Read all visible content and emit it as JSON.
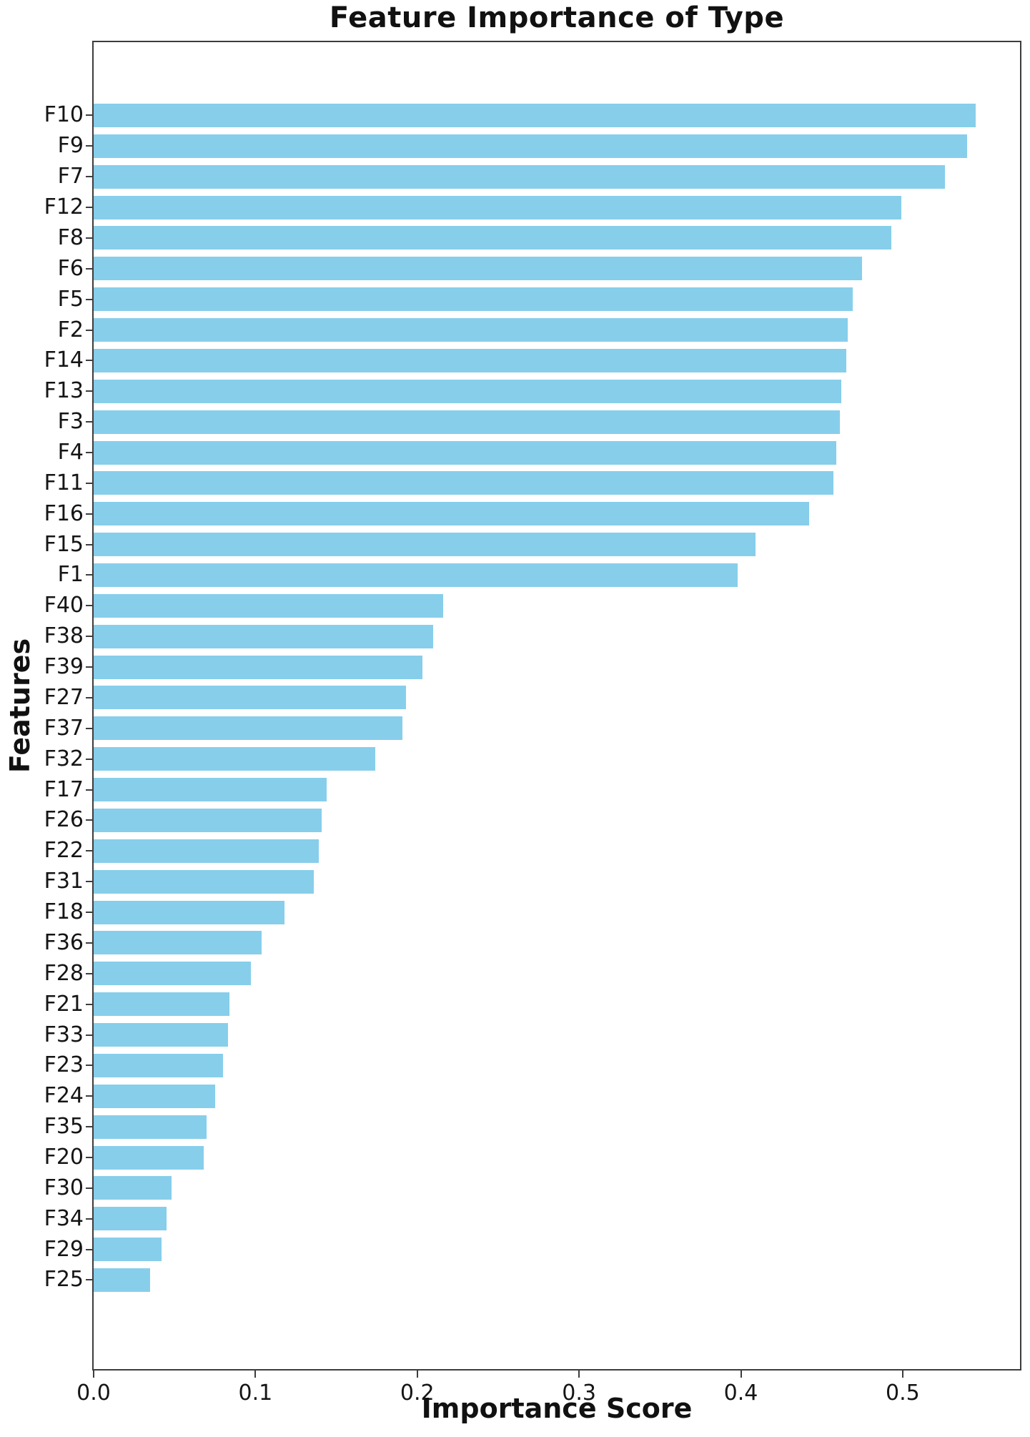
{
  "chart_data": {
    "type": "bar",
    "orientation": "horizontal",
    "title": "Feature Importance of Type",
    "xlabel": "Importance Score",
    "ylabel": "Features",
    "categories": [
      "F10",
      "F9",
      "F7",
      "F12",
      "F8",
      "F6",
      "F5",
      "F2",
      "F14",
      "F13",
      "F3",
      "F4",
      "F11",
      "F16",
      "F15",
      "F1",
      "F40",
      "F38",
      "F39",
      "F27",
      "F37",
      "F32",
      "F17",
      "F26",
      "F22",
      "F31",
      "F18",
      "F36",
      "F28",
      "F21",
      "F33",
      "F23",
      "F24",
      "F35",
      "F20",
      "F30",
      "F34",
      "F29",
      "F25"
    ],
    "values": [
      0.545,
      0.54,
      0.526,
      0.499,
      0.493,
      0.475,
      0.469,
      0.466,
      0.465,
      0.462,
      0.461,
      0.459,
      0.457,
      0.442,
      0.409,
      0.398,
      0.216,
      0.21,
      0.203,
      0.193,
      0.191,
      0.174,
      0.144,
      0.141,
      0.139,
      0.136,
      0.118,
      0.104,
      0.097,
      0.084,
      0.083,
      0.08,
      0.075,
      0.07,
      0.068,
      0.048,
      0.045,
      0.042,
      0.035
    ],
    "xticks": [
      0.0,
      0.1,
      0.2,
      0.3,
      0.4,
      0.5
    ],
    "xtick_labels": [
      "0.0",
      "0.1",
      "0.2",
      "0.3",
      "0.4",
      "0.5"
    ],
    "xlim": [
      0,
      0.5725
    ],
    "bar_color": "#87CEEB",
    "grid": false,
    "legend": null
  }
}
